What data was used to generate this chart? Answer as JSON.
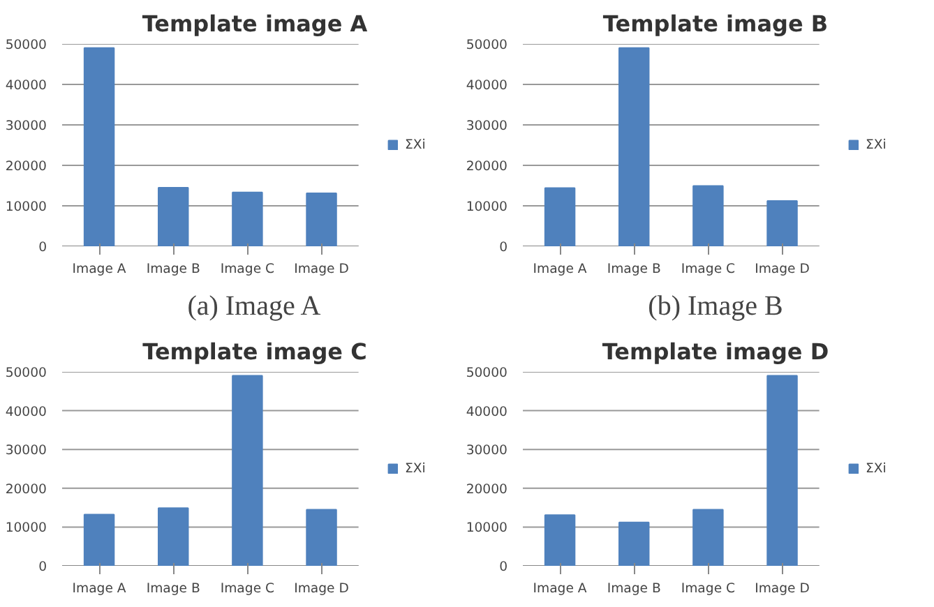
{
  "chart_data": [
    {
      "type": "bar",
      "title": "Template image A",
      "categories": [
        "Image A",
        "Image B",
        "Image C",
        "Image D"
      ],
      "series": [
        {
          "name": "ΣXi",
          "color": "#4f81bd",
          "values": [
            49000,
            14500,
            13300,
            13100
          ]
        }
      ],
      "ylim": [
        0,
        50000
      ],
      "yticks": [
        0,
        10000,
        20000,
        30000,
        40000,
        50000
      ],
      "grid": "y",
      "legend": "right",
      "annotations": [
        "(a) Image A"
      ]
    },
    {
      "type": "bar",
      "title": "Template image B",
      "categories": [
        "Image A",
        "Image B",
        "Image C",
        "Image D"
      ],
      "series": [
        {
          "name": "ΣXi",
          "color": "#4f81bd",
          "values": [
            14400,
            49000,
            14900,
            11200
          ]
        }
      ],
      "ylim": [
        0,
        50000
      ],
      "yticks": [
        0,
        10000,
        20000,
        30000,
        40000,
        50000
      ],
      "grid": "y",
      "legend": "right",
      "annotations": [
        "(b) Image B"
      ]
    },
    {
      "type": "bar",
      "title": "Template image C",
      "categories": [
        "Image A",
        "Image B",
        "Image C",
        "Image D"
      ],
      "series": [
        {
          "name": "ΣXi",
          "color": "#4f81bd",
          "values": [
            13200,
            14900,
            49000,
            14500
          ]
        }
      ],
      "ylim": [
        0,
        50000
      ],
      "yticks": [
        0,
        10000,
        20000,
        30000,
        40000,
        50000
      ],
      "grid": "y",
      "legend": "right"
    },
    {
      "type": "bar",
      "title": "Template image D",
      "categories": [
        "Image A",
        "Image B",
        "Image C",
        "Image D"
      ],
      "series": [
        {
          "name": "ΣXi",
          "color": "#4f81bd",
          "values": [
            13100,
            11200,
            14500,
            49000
          ]
        }
      ],
      "ylim": [
        0,
        50000
      ],
      "yticks": [
        0,
        10000,
        20000,
        30000,
        40000,
        50000
      ],
      "grid": "y",
      "legend": "right"
    }
  ]
}
